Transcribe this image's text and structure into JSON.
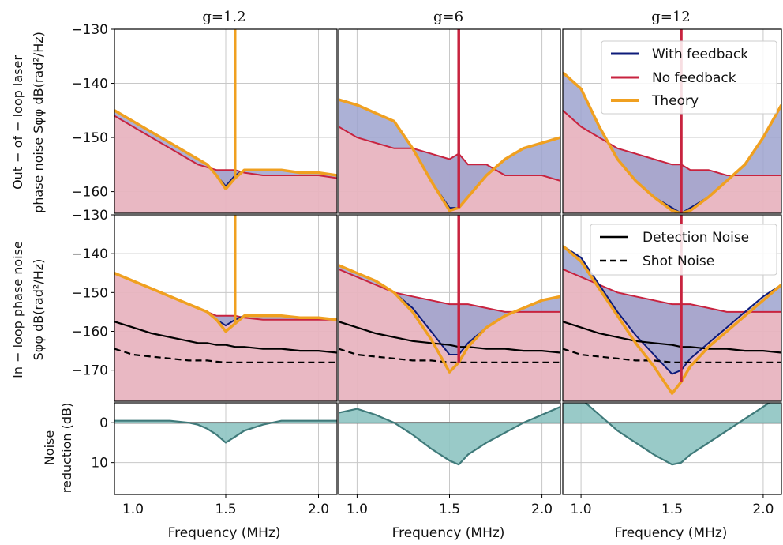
{
  "colors": {
    "with_feedback": "#0d1b7a",
    "no_feedback": "#c8233f",
    "theory": "#f0a020",
    "fill_no_feedback": "#e8b4c0",
    "fill_with_feedback": "#9da3cf",
    "reduction_fill": "#8ec4c2",
    "reduction_line": "#3f7a7a",
    "grid": "#c8c8c8"
  },
  "chart_data": {
    "type": "line",
    "column_titles": [
      "g=1.2",
      "g=6",
      "g=12"
    ],
    "xlabel": "Frequency (MHz)",
    "xlim": [
      0.9,
      2.1
    ],
    "x_ticks": [
      "1.0",
      "1.5",
      "2.0"
    ],
    "rows": [
      {
        "ylabel_line1": "Out − of − loop laser",
        "ylabel_line2": "phase noise Sφφ dB(rad²/Hz)",
        "ylim": [
          -130,
          -164
        ],
        "y_ticks": [
          "−130",
          "−140",
          "−150",
          "−160"
        ],
        "legend": [
          "With feedback",
          "No feedback",
          "Theory"
        ]
      },
      {
        "ylabel_line1": "In − loop phase noise",
        "ylabel_line2": "Sφφ dB(rad²/Hz)",
        "ylim": [
          -130,
          -178
        ],
        "y_ticks": [
          "−130",
          "−140",
          "−150",
          "−160",
          "−170"
        ],
        "legend": [
          "Detection Noise",
          "Shot Noise"
        ]
      },
      {
        "ylabel_line1": "Noise",
        "ylabel_line2": "reduction (dB)",
        "ylim": [
          -5,
          18
        ],
        "y_ticks": [
          "0",
          "10"
        ]
      }
    ],
    "series": {
      "out_of_loop": [
        {
          "g": "g=1.2",
          "x": [
            0.9,
            1.0,
            1.1,
            1.2,
            1.3,
            1.35,
            1.4,
            1.45,
            1.5,
            1.55,
            1.6,
            1.7,
            1.8,
            1.9,
            2.0,
            2.1
          ],
          "no_feedback": [
            -146,
            -148,
            -150,
            -152,
            -154,
            -155,
            -155.5,
            -156,
            -156,
            -156,
            -156.5,
            -157,
            -157,
            -157,
            -157,
            -157.5
          ],
          "with_feedback": [
            -145,
            -147,
            -149,
            -151,
            -153,
            -154,
            -155,
            -157,
            -159,
            -157,
            -156,
            -156,
            -156,
            -156.5,
            -156.5,
            -157
          ],
          "theory": [
            -145,
            -147,
            -149,
            -151,
            -153,
            -154,
            -155,
            -157,
            -159.5,
            -157.5,
            -156,
            -156,
            -156,
            -156.5,
            -156.5,
            -157
          ]
        },
        {
          "g": "g=6",
          "x": [
            0.9,
            1.0,
            1.1,
            1.2,
            1.3,
            1.4,
            1.5,
            1.55,
            1.6,
            1.7,
            1.8,
            1.9,
            2.0,
            2.1
          ],
          "no_feedback": [
            -148,
            -150,
            -151,
            -152,
            -152,
            -153,
            -154,
            -153,
            -155,
            -155,
            -157,
            -157,
            -157,
            -158
          ],
          "with_feedback": [
            -143,
            -144,
            -145.5,
            -147,
            -152,
            -158,
            -163,
            -163,
            -161,
            -157,
            -154,
            -152,
            -151,
            -150
          ],
          "theory": [
            -143,
            -144,
            -145.5,
            -147,
            -152,
            -158,
            -163.5,
            -163,
            -161,
            -157,
            -154,
            -152,
            -151,
            -150
          ]
        },
        {
          "g": "g=12",
          "x": [
            0.9,
            1.0,
            1.1,
            1.2,
            1.3,
            1.4,
            1.5,
            1.55,
            1.6,
            1.7,
            1.8,
            1.9,
            2.0,
            2.1
          ],
          "no_feedback": [
            -145,
            -148,
            -150,
            -152,
            -153,
            -154,
            -155,
            -155,
            -156,
            -156,
            -157,
            -157,
            -157,
            -157
          ],
          "with_feedback": [
            -138,
            -141,
            -148,
            -154,
            -158,
            -161,
            -163,
            -164,
            -163,
            -161,
            -158,
            -155,
            -150,
            -144
          ],
          "theory": [
            -138,
            -141,
            -148,
            -154,
            -158,
            -161,
            -163.5,
            -164,
            -163.5,
            -161,
            -158,
            -155,
            -150,
            -144
          ]
        }
      ],
      "in_loop": [
        {
          "g": "g=1.2",
          "x": [
            0.9,
            1.0,
            1.1,
            1.2,
            1.3,
            1.35,
            1.4,
            1.45,
            1.5,
            1.55,
            1.6,
            1.7,
            1.8,
            1.9,
            2.0,
            2.1
          ],
          "no_feedback": [
            -145,
            -147,
            -149,
            -151,
            -153,
            -154,
            -155,
            -156,
            -156,
            -156,
            -156.5,
            -157,
            -157,
            -157,
            -157,
            -157
          ],
          "with_feedback": [
            -145,
            -147,
            -149,
            -151,
            -153,
            -154,
            -155,
            -157,
            -158.5,
            -157,
            -156,
            -156,
            -156,
            -156.5,
            -156.5,
            -157
          ],
          "theory": [
            -145,
            -147,
            -149,
            -151,
            -153,
            -154,
            -155,
            -157,
            -160,
            -158,
            -156,
            -156,
            -156,
            -156.5,
            -156.5,
            -157
          ],
          "detection_noise": [
            -157.5,
            -159,
            -160.5,
            -161.5,
            -162.5,
            -163,
            -163,
            -163.5,
            -163.5,
            -164,
            -164,
            -164.5,
            -164.5,
            -165,
            -165,
            -165.5
          ],
          "shot_noise": [
            -164.5,
            -166,
            -166.5,
            -167,
            -167.5,
            -167.5,
            -167.5,
            -167.8,
            -168,
            -168,
            -168,
            -168,
            -168,
            -168,
            -168,
            -168
          ]
        },
        {
          "g": "g=6",
          "x": [
            0.9,
            1.0,
            1.1,
            1.2,
            1.3,
            1.4,
            1.5,
            1.55,
            1.6,
            1.7,
            1.8,
            1.9,
            2.0,
            2.1
          ],
          "no_feedback": [
            -144,
            -146,
            -148,
            -150,
            -151,
            -152,
            -153,
            -153,
            -153,
            -154,
            -155,
            -155,
            -155,
            -155
          ],
          "with_feedback": [
            -143,
            -145,
            -147,
            -150,
            -154,
            -160,
            -166,
            -166,
            -163,
            -159,
            -156,
            -154,
            -152,
            -151
          ],
          "theory": [
            -143,
            -145,
            -147,
            -150,
            -155,
            -162,
            -170.5,
            -168,
            -164,
            -159,
            -156,
            -154,
            -152,
            -151
          ],
          "detection_noise": [
            -157.5,
            -159,
            -160.5,
            -161.5,
            -162.5,
            -163,
            -163.5,
            -164,
            -164,
            -164.5,
            -164.5,
            -165,
            -165,
            -165.5
          ],
          "shot_noise": [
            -164.5,
            -166,
            -166.5,
            -167,
            -167.5,
            -167.5,
            -168,
            -168,
            -168,
            -168,
            -168,
            -168,
            -168,
            -168
          ]
        },
        {
          "g": "g=12",
          "x": [
            0.9,
            1.0,
            1.1,
            1.2,
            1.3,
            1.4,
            1.5,
            1.55,
            1.6,
            1.7,
            1.8,
            1.9,
            2.0,
            2.1
          ],
          "no_feedback": [
            -144,
            -146,
            -148,
            -150,
            -151,
            -152,
            -153,
            -153,
            -153,
            -154,
            -155,
            -155,
            -155,
            -155
          ],
          "with_feedback": [
            -138,
            -141,
            -148,
            -155,
            -161,
            -166,
            -171,
            -170,
            -167,
            -163,
            -159,
            -155,
            -151,
            -148
          ],
          "theory": [
            -138,
            -142,
            -149,
            -156,
            -163,
            -169,
            -176,
            -173,
            -169,
            -164,
            -160,
            -156,
            -152,
            -148
          ],
          "detection_noise": [
            -157.5,
            -159,
            -160.5,
            -161.5,
            -162.5,
            -163,
            -163.5,
            -164,
            -164,
            -164.5,
            -164.5,
            -165,
            -165,
            -165.5
          ],
          "shot_noise": [
            -164.5,
            -166,
            -166.5,
            -167,
            -167.5,
            -167.5,
            -168,
            -168,
            -168,
            -168,
            -168,
            -168,
            -168,
            -168
          ]
        }
      ],
      "noise_reduction": [
        {
          "g": "g=1.2",
          "x": [
            0.9,
            1.0,
            1.1,
            1.2,
            1.3,
            1.35,
            1.4,
            1.45,
            1.5,
            1.55,
            1.6,
            1.7,
            1.8,
            1.9,
            2.0,
            2.1
          ],
          "values": [
            -0.5,
            -0.5,
            -0.5,
            -0.5,
            0,
            0.5,
            1.5,
            3,
            5,
            3.5,
            2,
            0.5,
            -0.5,
            -0.5,
            -0.5,
            -0.5
          ]
        },
        {
          "g": "g=6",
          "x": [
            0.9,
            1.0,
            1.1,
            1.2,
            1.3,
            1.4,
            1.5,
            1.55,
            1.6,
            1.7,
            1.8,
            1.9,
            2.0,
            2.1
          ],
          "values": [
            -2.5,
            -3.5,
            -2,
            0,
            3,
            6.5,
            9.5,
            10.5,
            8,
            5,
            2.5,
            0,
            -2,
            -4
          ]
        },
        {
          "g": "g=12",
          "x": [
            0.9,
            1.0,
            1.1,
            1.2,
            1.3,
            1.4,
            1.5,
            1.55,
            1.6,
            1.7,
            1.8,
            1.9,
            2.0,
            2.1
          ],
          "values": [
            -8,
            -6,
            -2,
            2,
            5,
            8,
            10.5,
            10,
            8,
            5,
            2,
            -1,
            -4,
            -7
          ]
        }
      ]
    },
    "spike_x": 1.55
  }
}
